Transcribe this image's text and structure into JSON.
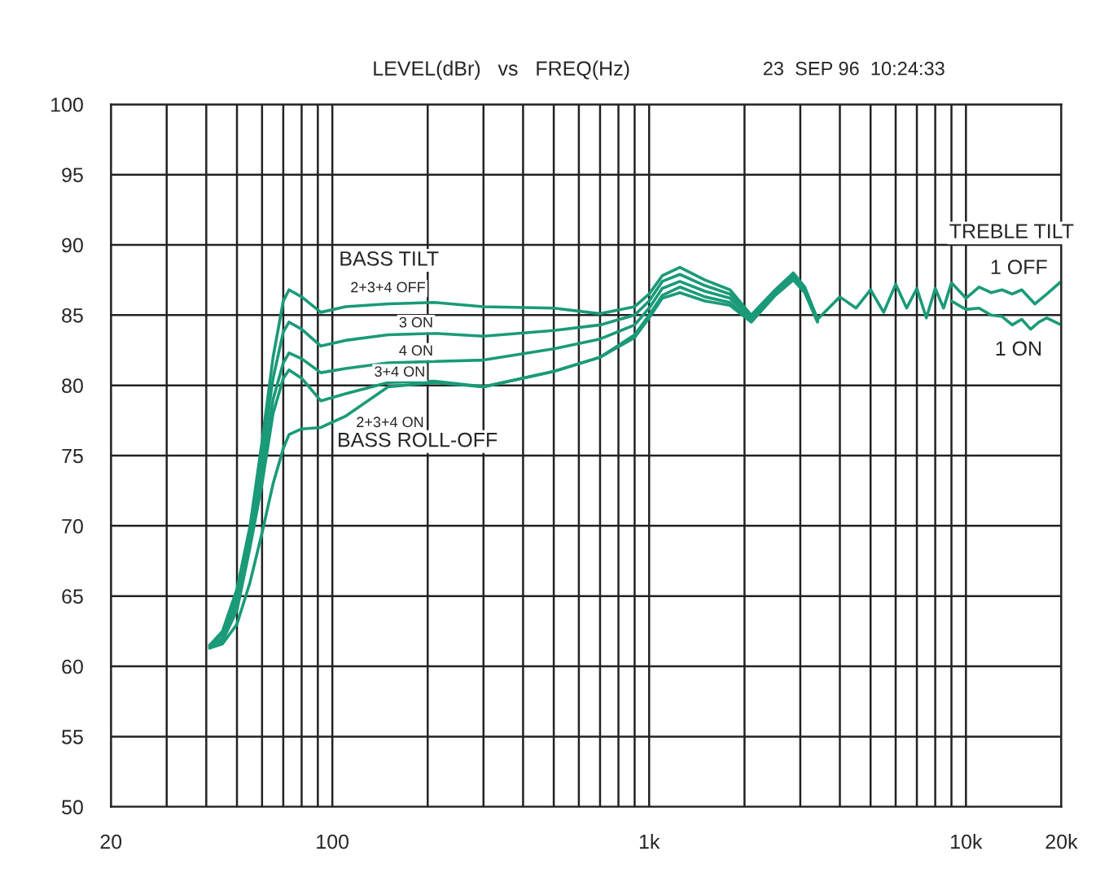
{
  "chart_data": {
    "type": "line",
    "title": "LEVEL(dBr)   vs   FREQ(Hz)",
    "annotations": [
      "23  SEP 96  10:24:33",
      "BASS TILT",
      "2+3+4 OFF",
      "3 ON",
      "4 ON",
      "3+4 ON",
      "2+3+4 ON",
      "BASS ROLL-OFF",
      "TREBLE TILT",
      "1 OFF",
      "1 ON"
    ],
    "series": [
      {
        "color": "#1a9a78",
        "x": [
          41,
          45,
          50,
          55,
          60,
          65,
          70,
          73,
          80,
          92,
          110,
          150,
          210,
          300,
          500,
          700,
          900,
          1000,
          1100,
          1250,
          1500,
          1800,
          2100,
          2500,
          2850,
          3100,
          3400,
          4000,
          4500,
          5000,
          5500,
          6000,
          6500,
          7000,
          7500,
          8000,
          8500,
          9000,
          10000,
          11000,
          12000,
          13000,
          14000,
          15000,
          16500,
          18000,
          20000
        ],
        "values": [
          61.5,
          62.5,
          65.5,
          70,
          76,
          82,
          86,
          86.8,
          86.3,
          85.2,
          85.6,
          85.8,
          85.9,
          85.6,
          85.5,
          85.1,
          85.6,
          86.5,
          87.8,
          88.4,
          87.5,
          86.8,
          85.0,
          86.8,
          88.0,
          87.0,
          84.7,
          86.3,
          85.5,
          86.8,
          85.2,
          87.2,
          85.5,
          86.9,
          84.8,
          86.9,
          85.5,
          87.3,
          86.2,
          87.0,
          86.6,
          86.8,
          86.5,
          86.8,
          85.8,
          86.5,
          87.4
        ]
      },
      {
        "color": "#1a9a78",
        "x": [
          41,
          45,
          50,
          55,
          60,
          65,
          70,
          73,
          80,
          92,
          110,
          150,
          210,
          300,
          500,
          700,
          900,
          1000,
          1100,
          1250,
          1500,
          1800,
          2100,
          2500,
          2850,
          3100,
          3400
        ],
        "values": [
          61.5,
          62.3,
          65,
          69.5,
          75,
          80.5,
          83.8,
          84.5,
          84.0,
          82.8,
          83.2,
          83.6,
          83.7,
          83.5,
          83.9,
          84.3,
          85.0,
          86.0,
          87.4,
          87.9,
          87.1,
          86.5,
          84.9,
          86.7,
          87.8,
          86.9,
          84.7
        ]
      },
      {
        "color": "#1a9a78",
        "x": [
          41,
          45,
          50,
          55,
          60,
          65,
          70,
          73,
          80,
          92,
          110,
          150,
          210,
          300,
          500,
          700,
          900,
          1000,
          1100,
          1250,
          1500,
          1800,
          2100,
          2500,
          2850,
          3100,
          3400
        ],
        "values": [
          61.4,
          62,
          64.5,
          69,
          74,
          79,
          81.6,
          82.3,
          81.9,
          80.9,
          81.2,
          81.6,
          81.7,
          81.8,
          82.6,
          83.3,
          84.3,
          85.5,
          86.9,
          87.4,
          86.7,
          86.2,
          84.8,
          86.6,
          87.7,
          86.8,
          84.6
        ]
      },
      {
        "color": "#1a9a78",
        "x": [
          41,
          45,
          50,
          55,
          60,
          65,
          70,
          73,
          80,
          92,
          110,
          150,
          210,
          300,
          500,
          700,
          900,
          1000,
          1100,
          1250,
          1500,
          1800,
          2100,
          2500,
          2850,
          3100,
          3400
        ],
        "values": [
          61.3,
          61.8,
          64,
          68.5,
          73,
          78,
          80.5,
          81.1,
          80.5,
          78.9,
          79.4,
          80.2,
          80.3,
          79.9,
          81.0,
          82.0,
          83.6,
          85.0,
          86.4,
          87.0,
          86.3,
          85.9,
          84.6,
          86.5,
          87.6,
          86.7,
          84.6
        ]
      },
      {
        "color": "#1a9a78",
        "x": [
          41,
          45,
          50,
          55,
          60,
          65,
          70,
          73,
          80,
          92,
          110,
          150,
          210,
          300,
          500,
          700,
          900,
          1000,
          1100,
          1250,
          1500,
          1800,
          2100,
          2500,
          2850,
          3100,
          3400
        ],
        "values": [
          61.3,
          61.6,
          63,
          66,
          69.5,
          73,
          75.5,
          76.5,
          76.9,
          77.0,
          77.8,
          79.9,
          80.2,
          79.9,
          81.0,
          82.0,
          83.4,
          84.8,
          86.2,
          86.6,
          86.0,
          85.7,
          84.5,
          86.4,
          87.5,
          86.6,
          84.5
        ]
      },
      {
        "color": "#1a9a78",
        "x": [
          9000,
          10000,
          11000,
          12000,
          13000,
          14000,
          15000,
          16000,
          17000,
          18000,
          20000
        ],
        "values": [
          86.0,
          85.4,
          85.5,
          85.0,
          84.9,
          84.3,
          84.7,
          84.0,
          84.5,
          84.8,
          84.3
        ]
      }
    ],
    "log": "x",
    "xlim": [
      20,
      20000
    ],
    "ylim": [
      50,
      100
    ],
    "xticks": [
      20,
      {
        "value": 30,
        "label": null
      },
      {
        "value": 40,
        "label": null
      },
      {
        "value": 50,
        "label": null
      },
      {
        "value": 60,
        "label": null
      },
      {
        "value": 70,
        "label": null
      },
      {
        "value": 80,
        "label": null
      },
      {
        "value": 90,
        "label": null
      },
      100,
      {
        "value": 200,
        "label": null
      },
      {
        "value": 300,
        "label": null
      },
      {
        "value": 400,
        "label": null
      },
      {
        "value": 500,
        "label": null
      },
      {
        "value": 600,
        "label": null
      },
      {
        "value": 700,
        "label": null
      },
      {
        "value": 800,
        "label": null
      },
      {
        "value": 900,
        "label": null
      },
      {
        "value": 1000,
        "label": "1k"
      },
      {
        "value": 2000,
        "label": null
      },
      {
        "value": 3000,
        "label": null
      },
      {
        "value": 4000,
        "label": null
      },
      {
        "value": 5000,
        "label": null
      },
      {
        "value": 6000,
        "label": null
      },
      {
        "value": 7000,
        "label": null
      },
      {
        "value": 8000,
        "label": null
      },
      {
        "value": 9000,
        "label": null
      },
      {
        "value": 10000,
        "label": "10k"
      },
      {
        "value": 20000,
        "label": "20k"
      }
    ],
    "yticks": [
      50,
      55,
      60,
      65,
      70,
      75,
      80,
      85,
      90,
      95,
      100
    ],
    "grid": true,
    "marker": "none",
    "line_style": "solid",
    "legend": false
  }
}
